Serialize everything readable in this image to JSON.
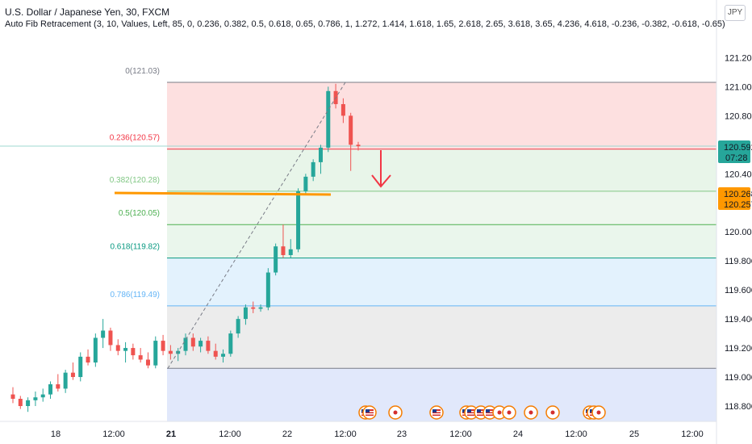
{
  "header": {
    "symbol_title": "U.S. Dollar / Japanese Yen, 30, FXCM",
    "indicator": "Auto Fib Retracement (3, 10, Values, Left, 85, 0, 0.236, 0.382, 0.5, 0.618, 0.65, 0.786, 1, 1.272, 1.414, 1.618, 1.65, 2.618, 2.65, 3.618, 3.65, 4.236, 4.618, -0.236, -0.382, -0.618, -0.65)"
  },
  "currency": "JPY",
  "price_axis": {
    "ticks": [
      "121.200",
      "121.000",
      "120.800",
      "120.400",
      "120.000",
      "119.800",
      "119.600",
      "119.400",
      "119.200",
      "119.000",
      "118.800"
    ],
    "tick_values": [
      121.2,
      121.0,
      120.8,
      120.4,
      120.0,
      119.8,
      119.6,
      119.4,
      119.2,
      119.0,
      118.8
    ],
    "current_price": "120.592",
    "countdown": "07:28",
    "marker_high": "120.268",
    "marker_low": "120.257",
    "colors": {
      "current": "#26a69a",
      "marker": "#ff9800"
    }
  },
  "time_axis": {
    "labels": [
      "18",
      "12:00",
      "21",
      "12:00",
      "22",
      "12:00",
      "23",
      "12:00",
      "24",
      "12:00",
      "25",
      "12:00"
    ]
  },
  "fib_levels": [
    {
      "label": "0(121.03)",
      "price": 121.03,
      "color": "#787b86"
    },
    {
      "label": "0.236(120.57)",
      "price": 120.57,
      "color": "#f23645"
    },
    {
      "label": "0.382(120.28)",
      "price": 120.28,
      "color": "#81c784"
    },
    {
      "label": "0.5(120.05)",
      "price": 120.05,
      "color": "#4caf50"
    },
    {
      "label": "0.618(119.82)",
      "price": 119.82,
      "color": "#089981"
    },
    {
      "label": "0.786(119.49)",
      "price": 119.49,
      "color": "#64b5f6"
    },
    {
      "label": "",
      "price": 119.06,
      "color": "#787b86"
    }
  ],
  "chart_data": {
    "type": "candlestick",
    "ylim": [
      118.7,
      121.3
    ],
    "candles": [
      [
        118.88,
        118.93,
        118.82,
        118.85
      ],
      [
        118.85,
        118.87,
        118.78,
        118.8
      ],
      [
        118.8,
        118.86,
        118.76,
        118.84
      ],
      [
        118.84,
        118.9,
        118.8,
        118.86
      ],
      [
        118.86,
        118.92,
        118.83,
        118.88
      ],
      [
        118.88,
        118.97,
        118.85,
        118.95
      ],
      [
        118.95,
        119.02,
        118.9,
        118.92
      ],
      [
        118.92,
        119.05,
        118.89,
        119.03
      ],
      [
        119.03,
        119.1,
        118.98,
        119.0
      ],
      [
        119.0,
        119.17,
        118.97,
        119.14
      ],
      [
        119.14,
        119.19,
        119.08,
        119.1
      ],
      [
        119.1,
        119.3,
        119.07,
        119.27
      ],
      [
        119.27,
        119.4,
        119.2,
        119.32
      ],
      [
        119.32,
        119.34,
        119.18,
        119.22
      ],
      [
        119.22,
        119.26,
        119.15,
        119.18
      ],
      [
        119.18,
        119.24,
        119.1,
        119.2
      ],
      [
        119.2,
        119.23,
        119.12,
        119.15
      ],
      [
        119.15,
        119.2,
        119.1,
        119.12
      ],
      [
        119.12,
        119.17,
        119.06,
        119.08
      ],
      [
        119.08,
        119.28,
        119.06,
        119.25
      ],
      [
        119.25,
        119.29,
        119.15,
        119.18
      ],
      [
        119.18,
        119.22,
        119.12,
        119.16
      ],
      [
        119.16,
        119.2,
        119.11,
        119.18
      ],
      [
        119.18,
        119.3,
        119.15,
        119.27
      ],
      [
        119.27,
        119.3,
        119.18,
        119.21
      ],
      [
        119.21,
        119.27,
        119.17,
        119.25
      ],
      [
        119.25,
        119.28,
        119.16,
        119.18
      ],
      [
        119.18,
        119.23,
        119.12,
        119.14
      ],
      [
        119.14,
        119.19,
        119.1,
        119.16
      ],
      [
        119.16,
        119.32,
        119.14,
        119.3
      ],
      [
        119.3,
        119.42,
        119.27,
        119.4
      ],
      [
        119.4,
        119.5,
        119.36,
        119.48
      ],
      [
        119.48,
        119.52,
        119.44,
        119.47
      ],
      [
        119.47,
        119.5,
        119.45,
        119.48
      ],
      [
        119.48,
        119.75,
        119.46,
        119.72
      ],
      [
        119.72,
        119.92,
        119.7,
        119.9
      ],
      [
        119.9,
        120.05,
        119.82,
        119.84
      ],
      [
        119.84,
        119.95,
        119.82,
        119.88
      ],
      [
        119.88,
        120.3,
        119.86,
        120.28
      ],
      [
        120.28,
        120.4,
        120.26,
        120.38
      ],
      [
        120.38,
        120.5,
        120.35,
        120.48
      ],
      [
        120.48,
        120.6,
        120.4,
        120.58
      ],
      [
        120.58,
        121.0,
        120.55,
        120.97
      ],
      [
        120.97,
        121.02,
        120.85,
        120.88
      ],
      [
        120.88,
        120.92,
        120.75,
        120.8
      ],
      [
        120.8,
        120.82,
        120.42,
        120.6
      ],
      [
        120.6,
        120.62,
        120.56,
        120.59
      ]
    ]
  },
  "overlay": {
    "arrow_color": "#f23645",
    "orange_line_color": "#ff9800"
  },
  "events": [
    {
      "type": "us"
    },
    {
      "type": "us"
    },
    {
      "type": "jp"
    },
    {
      "type": "us"
    },
    {
      "type": "us"
    },
    {
      "type": "us"
    },
    {
      "type": "us"
    },
    {
      "type": "us"
    },
    {
      "type": "jp"
    },
    {
      "type": "jp"
    },
    {
      "type": "jp"
    },
    {
      "type": "jp"
    },
    {
      "type": "us"
    },
    {
      "type": "us"
    },
    {
      "type": "jp"
    }
  ]
}
